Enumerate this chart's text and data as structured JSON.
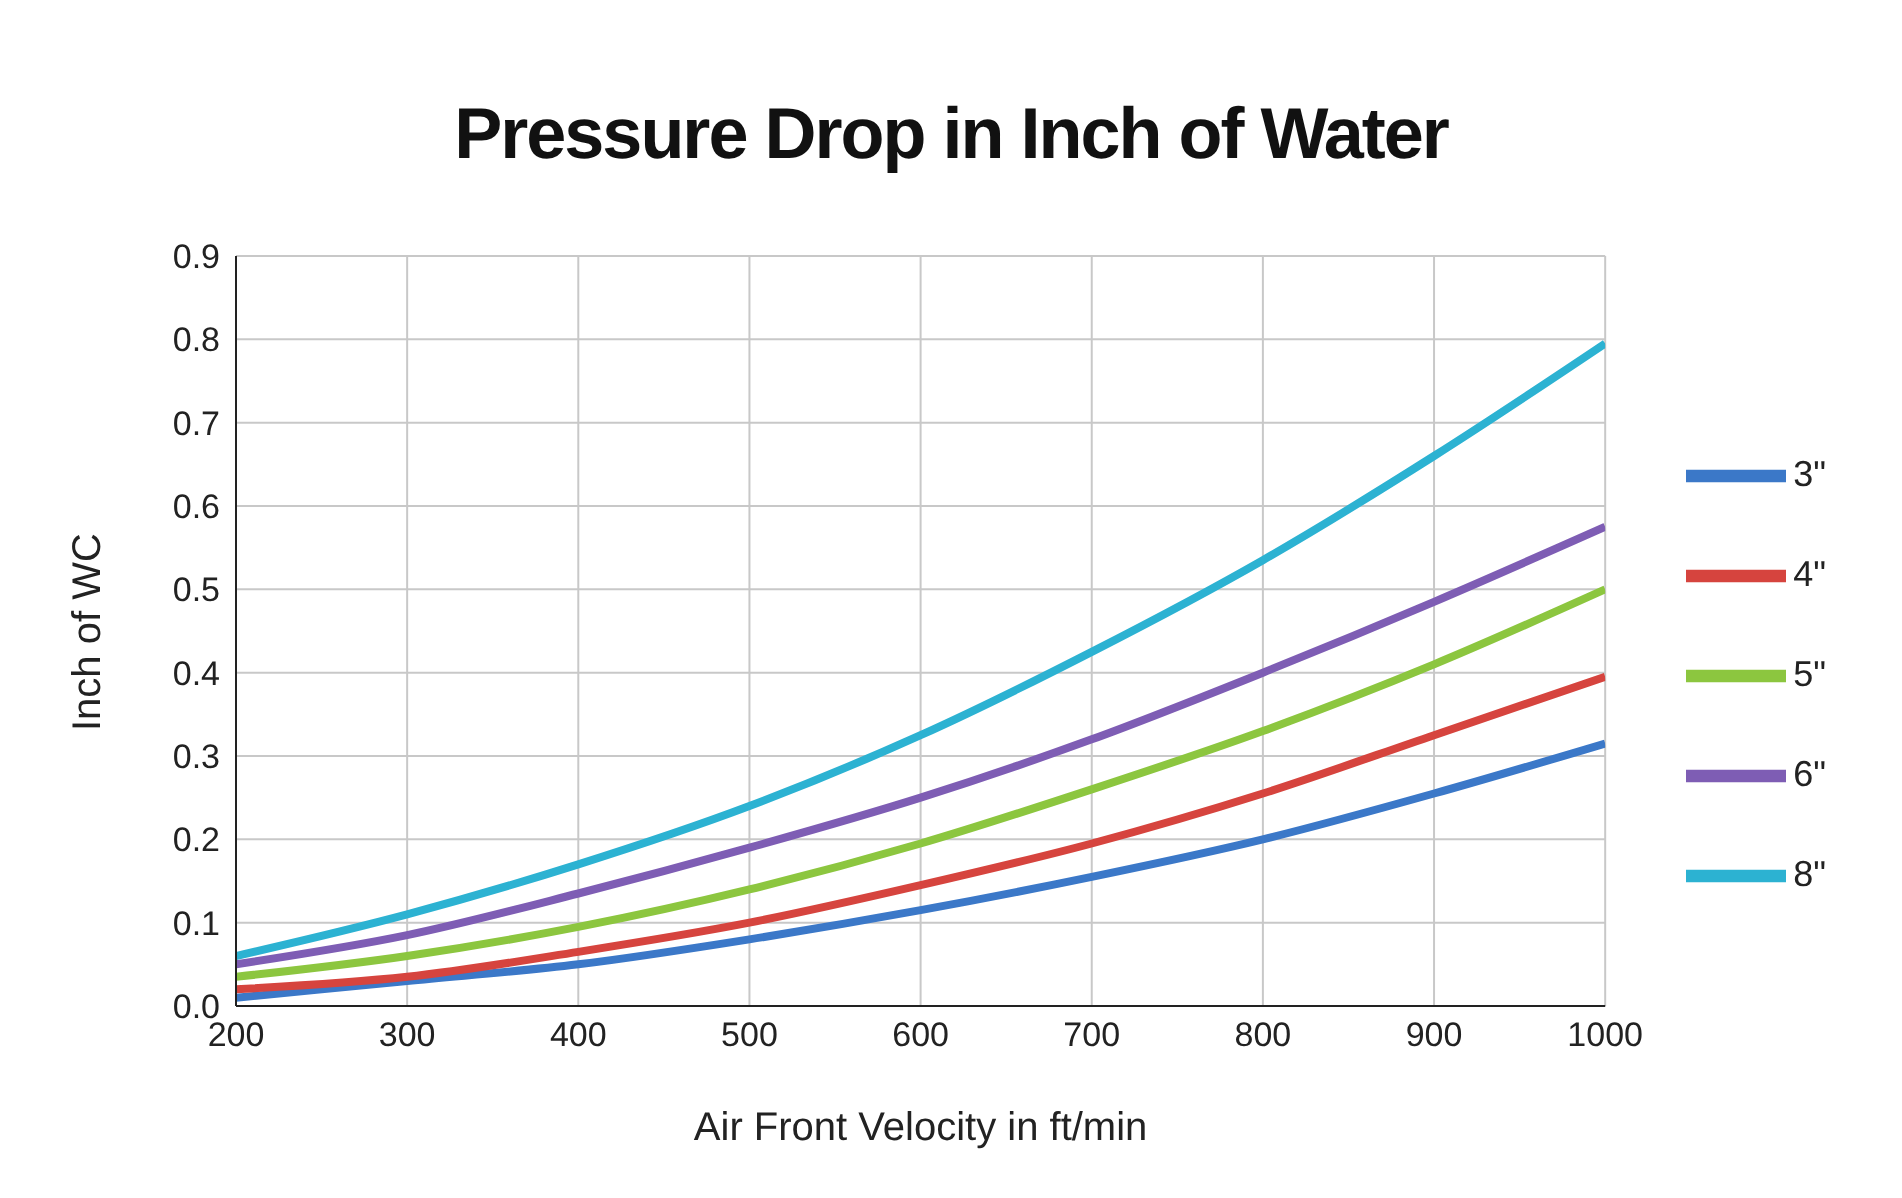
{
  "chart_data": {
    "type": "line",
    "title": "Pressure Drop in Inch of Water",
    "xlabel": "Air Front Velocity in ft/min",
    "ylabel": "Inch of WC",
    "x": [
      200,
      300,
      400,
      500,
      600,
      700,
      800,
      900,
      1000
    ],
    "series": [
      {
        "name": "3\"",
        "color": "#3b78c8",
        "values": [
          0.01,
          0.03,
          0.05,
          0.08,
          0.115,
          0.155,
          0.2,
          0.255,
          0.315
        ]
      },
      {
        "name": "4\"",
        "color": "#d6443e",
        "values": [
          0.02,
          0.035,
          0.065,
          0.1,
          0.145,
          0.195,
          0.255,
          0.325,
          0.395
        ]
      },
      {
        "name": "5\"",
        "color": "#8cc63f",
        "values": [
          0.035,
          0.06,
          0.095,
          0.14,
          0.195,
          0.26,
          0.33,
          0.41,
          0.5
        ]
      },
      {
        "name": "6\"",
        "color": "#7e5db4",
        "values": [
          0.05,
          0.085,
          0.135,
          0.19,
          0.25,
          0.32,
          0.4,
          0.485,
          0.575
        ]
      },
      {
        "name": "8\"",
        "color": "#2cb2d2",
        "values": [
          0.06,
          0.11,
          0.17,
          0.24,
          0.325,
          0.425,
          0.535,
          0.66,
          0.795
        ]
      }
    ],
    "xlim": [
      200,
      1000
    ],
    "xticks": [
      200,
      300,
      400,
      500,
      600,
      700,
      800,
      900,
      1000
    ],
    "ylim": [
      0,
      0.9
    ],
    "yticks": [
      {
        "value": 0,
        "label": "0.0"
      },
      0.1,
      0.2,
      0.3,
      0.4,
      0.5,
      0.6,
      0.7,
      0.8,
      0.9
    ],
    "grid": true,
    "legend": "right",
    "marker": "none",
    "line_style": "solid"
  }
}
